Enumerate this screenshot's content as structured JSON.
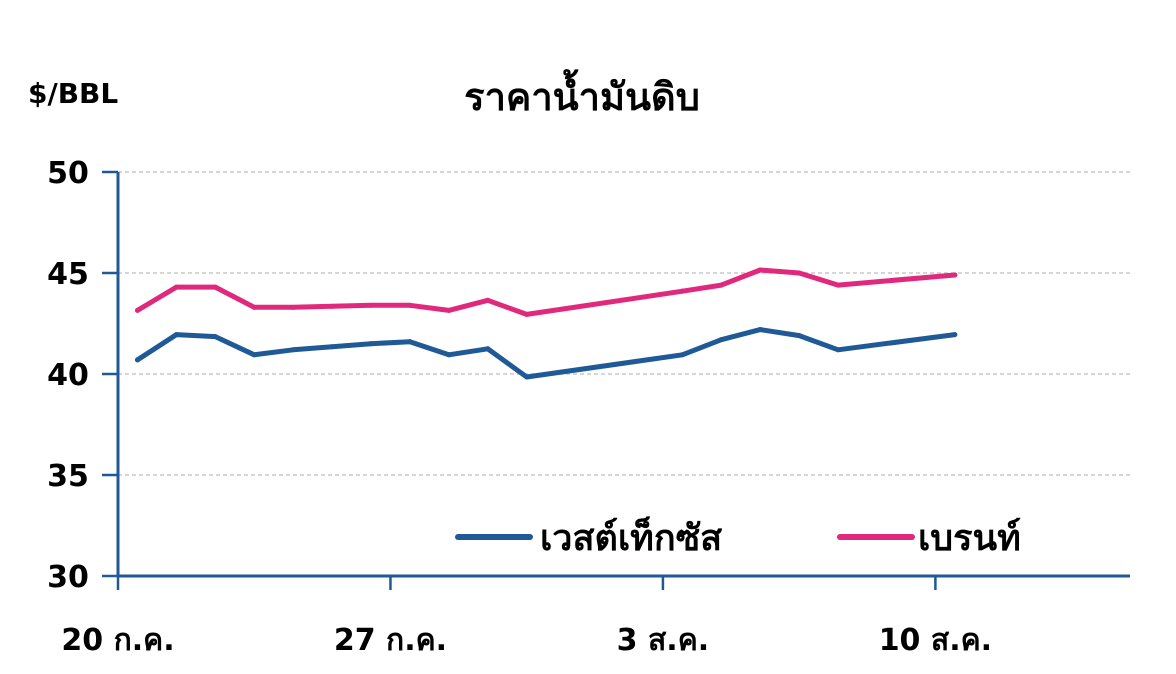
{
  "chart_data": {
    "type": "line",
    "title": "ราคาน้ำมันดิบ",
    "ylabel": "$/BBL",
    "xlabel": "",
    "ylim": [
      30,
      50
    ],
    "yticks": [
      30,
      35,
      40,
      45,
      50
    ],
    "x_tick_labels": [
      "20 ก.ค.",
      "27 ก.ค.",
      "3 ส.ค.",
      "10 ส.ค."
    ],
    "x_tick_positions": [
      0,
      7,
      14,
      21
    ],
    "x_range": [
      0,
      26
    ],
    "grid": true,
    "legend_position": "bottom-right",
    "x": [
      0.5,
      1.5,
      2.5,
      3.5,
      4.5,
      5.5,
      6.5,
      7.5,
      8.5,
      9.5,
      10.5,
      14.5,
      15.5,
      16.5,
      17.5,
      18.5,
      21.5
    ],
    "series": [
      {
        "name": "เวสต์เท็กซัส",
        "color": "#1f5a96",
        "values": [
          40.7,
          41.95,
          41.85,
          40.95,
          41.2,
          41.35,
          41.5,
          41.6,
          40.95,
          41.25,
          39.85,
          40.95,
          41.7,
          42.2,
          41.9,
          41.2,
          41.95
        ]
      },
      {
        "name": "เบรนท์",
        "color": "#e0297c",
        "values": [
          43.15,
          44.3,
          44.3,
          43.3,
          43.3,
          43.35,
          43.4,
          43.4,
          43.15,
          43.65,
          42.95,
          44.1,
          44.4,
          45.15,
          45.0,
          44.4,
          44.9
        ]
      }
    ]
  },
  "colors": {
    "axis": "#1f5a96",
    "grid": "#c8c8c8"
  }
}
